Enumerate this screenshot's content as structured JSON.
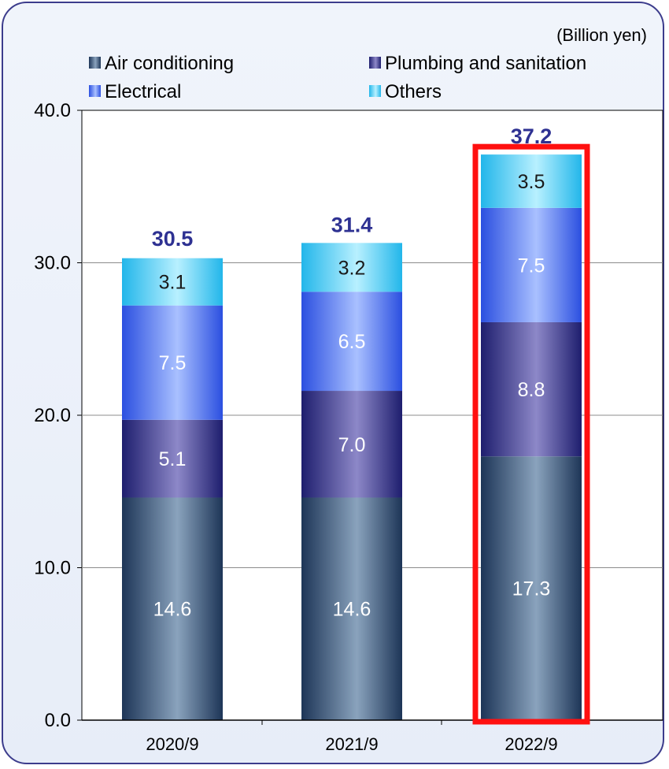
{
  "unit_label": "(Billion yen)",
  "colors": {
    "air_conditioning": "#5a6f8a",
    "plumbing": "#5a5aa6",
    "electrical": "#5577f0",
    "others": "#55d0f0",
    "total_label": "#2e3192",
    "highlight": "#ff1010",
    "frame": "#3c3c8c"
  },
  "chart_data": {
    "type": "bar",
    "stacked": true,
    "categories": [
      "2020/9",
      "2021/9",
      "2022/9"
    ],
    "series": [
      {
        "name": "Air conditioning",
        "values": [
          14.6,
          14.6,
          17.3
        ]
      },
      {
        "name": "Plumbing and sanitation",
        "values": [
          5.1,
          7.0,
          8.8
        ]
      },
      {
        "name": "Electrical",
        "values": [
          7.5,
          6.5,
          7.5
        ]
      },
      {
        "name": "Others",
        "values": [
          3.1,
          3.2,
          3.5
        ]
      }
    ],
    "totals": [
      30.5,
      31.4,
      37.2
    ],
    "ylim": [
      0,
      40
    ],
    "yticks": [
      "0.0",
      "10.0",
      "20.0",
      "30.0",
      "40.0"
    ],
    "grid": true,
    "legend_position": "top",
    "highlighted_category": "2022/9"
  }
}
